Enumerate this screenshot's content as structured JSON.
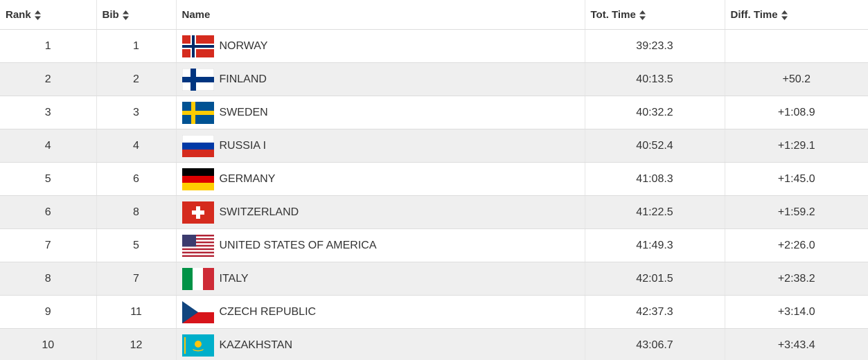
{
  "table": {
    "header": [
      "Rank",
      "Bib",
      "Name",
      "Tot. Time",
      "Diff. Time"
    ],
    "rows": [
      {
        "rank": 1,
        "bib": 1,
        "name": "NORWAY",
        "time": "39:23.3"
      },
      {
        "rank": 2,
        "bib": 2,
        "name": "FINLAND",
        "time": "40:13.5",
        "diff": "+50.2"
      },
      {
        "rank": 3,
        "bib": 3,
        "name": "SWEDEN",
        "time": "40:32.2",
        "diff": "+1:08.9"
      },
      {
        "rank": 4,
        "bib": 4,
        "name": "RUSSIA I",
        "time": "40:52.4",
        "diff": "+1:29.1"
      },
      {
        "rank": 5,
        "bib": 6,
        "name": "GERMANY",
        "time": "41:08.3",
        "diff": "+1:45.0"
      },
      {
        "rank": 6,
        "bib": 8,
        "name": "SWITZERLAND",
        "time": "41:22.5",
        "diff": "+1:59.2"
      },
      {
        "rank": 7,
        "bib": 5,
        "name": "UNITED STATES OF AMERICA",
        "time": "41:49.3",
        "diff": "+2:26.0"
      },
      {
        "rank": 8,
        "bib": 7,
        "name": "ITALY",
        "time": "42:01.5",
        "diff": "+2:38.2"
      },
      {
        "rank": 9,
        "bib": 11,
        "name": "CZECH REPUBLIC",
        "time": "42:37.3",
        "diff": "+3:14.0"
      },
      {
        "rank": 10,
        "bib": 12,
        "name": "KAZAKHSTAN",
        "time": "43:06.7",
        "diff": "+3:43.4"
      }
    ]
  }
}
